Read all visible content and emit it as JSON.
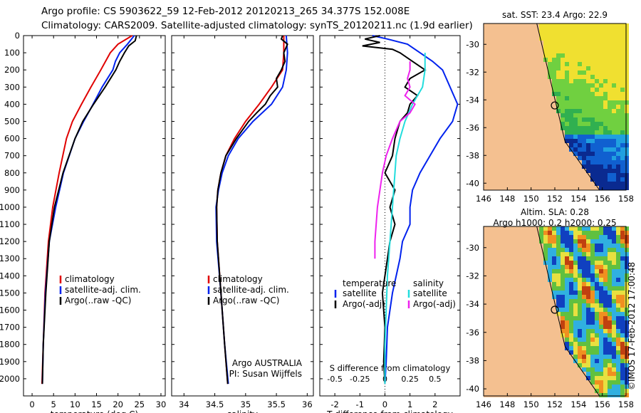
{
  "header": {
    "line1": "Argo profile: CS 5903622_59 12-Feb-2012 20120213_265 34.377S 152.008E",
    "line2": "Climatology: CARS2009. Satellite-adjusted climatology: synTS_20120211.nc (1.9d earlier)"
  },
  "colors": {
    "climatology": "#e00000",
    "satellite": "#0022ee",
    "argo": "#000000",
    "sal_satellite": "#22dddd",
    "sal_argo": "#ee22ee",
    "land": "#f4c090"
  },
  "side_label": "©IMOS 17-Feb-2012 17:00:48",
  "chart_data": [
    {
      "type": "line",
      "id": "temperature",
      "xlabel": "temperature (deg C)",
      "xlim": [
        -2,
        31
      ],
      "xticks": [
        0,
        5,
        10,
        15,
        20,
        25,
        30
      ],
      "ylim": [
        2100,
        0
      ],
      "yticks": [
        0,
        100,
        200,
        300,
        400,
        500,
        600,
        700,
        800,
        900,
        1000,
        1100,
        1200,
        1300,
        1400,
        1500,
        1600,
        1700,
        1800,
        1900,
        2000
      ],
      "series": [
        {
          "name": "climatology",
          "color": "#e00000",
          "y": [
            0,
            50,
            100,
            200,
            300,
            400,
            500,
            600,
            800,
            1000,
            1200,
            1500,
            1800,
            2030
          ],
          "x": [
            23.3,
            20,
            18.2,
            16,
            13.7,
            11.5,
            9.4,
            8,
            6.3,
            4.8,
            3.8,
            3,
            2.6,
            2.3
          ]
        },
        {
          "name": "satellite-adj. clim.",
          "color": "#0022ee",
          "y": [
            0,
            50,
            100,
            150,
            200,
            300,
            400,
            500,
            600,
            800,
            1000,
            1200,
            1500,
            1800,
            2030
          ],
          "x": [
            23.8,
            22.2,
            20.4,
            19.4,
            18.8,
            16.3,
            14.2,
            12,
            10,
            7.3,
            5.5,
            4,
            3.1,
            2.6,
            2.4
          ]
        },
        {
          "name": "Argo(..raw -QC)",
          "color": "#000000",
          "y": [
            0,
            30,
            60,
            100,
            150,
            200,
            300,
            400,
            500,
            600,
            800,
            1000,
            1200,
            1500,
            1800,
            2030
          ],
          "x": [
            24.3,
            24,
            22.5,
            21.5,
            20.4,
            19.5,
            17,
            14.3,
            11.8,
            10,
            7.2,
            5.2,
            4,
            3.2,
            2.6,
            2.4
          ]
        }
      ],
      "legend": [
        "climatology",
        "satellite-adj. clim.",
        "Argo(..raw -QC)"
      ]
    },
    {
      "type": "line",
      "id": "salinity",
      "xlabel": "salinity",
      "xlim": [
        33.8,
        36.1
      ],
      "xticks": [
        34,
        34.5,
        35,
        35.5,
        36
      ],
      "ylim": [
        2100,
        0
      ],
      "series": [
        {
          "name": "climatology",
          "color": "#e00000",
          "y": [
            0,
            100,
            200,
            300,
            400,
            500,
            600,
            700,
            800,
            900,
            1000,
            1200,
            1500,
            1800,
            2030
          ],
          "x": [
            35.62,
            35.62,
            35.6,
            35.42,
            35.22,
            35.0,
            34.82,
            34.68,
            34.6,
            34.55,
            34.53,
            34.54,
            34.6,
            34.66,
            34.71
          ]
        },
        {
          "name": "satellite-adj. clim.",
          "color": "#0022ee",
          "y": [
            0,
            100,
            200,
            300,
            400,
            500,
            600,
            700,
            800,
            900,
            1000,
            1200,
            1500,
            1800,
            2030
          ],
          "x": [
            35.66,
            35.68,
            35.66,
            35.6,
            35.42,
            35.12,
            34.88,
            34.72,
            34.62,
            34.56,
            34.52,
            34.53,
            34.6,
            34.66,
            34.72
          ]
        },
        {
          "name": "Argo(..raw -QC)",
          "color": "#000000",
          "y": [
            0,
            20,
            50,
            100,
            150,
            200,
            250,
            300,
            350,
            400,
            450,
            500,
            600,
            700,
            800,
            900,
            1000,
            1200,
            1500,
            1800,
            2030
          ],
          "x": [
            35.6,
            35.58,
            35.68,
            35.62,
            35.64,
            35.58,
            35.5,
            35.52,
            35.4,
            35.32,
            35.18,
            35.05,
            34.85,
            34.68,
            34.6,
            34.55,
            34.53,
            34.54,
            34.6,
            34.66,
            34.71
          ]
        }
      ],
      "legend": [
        "climatology",
        "satellite-adj. clim.",
        "Argo(..raw -QC)"
      ],
      "note1": "Argo AUSTRALIA",
      "note2": "PI: Susan Wijffels"
    },
    {
      "type": "line",
      "id": "difference",
      "xlabel": "T difference from climatology",
      "xlabel_top": "S difference from climatology",
      "xlim": [
        -2.6,
        3.0
      ],
      "xticks": [
        -2,
        -1,
        0,
        1,
        2
      ],
      "xticks_top": [
        -0.5,
        -0.25,
        0,
        0.25,
        0.5
      ],
      "ylim": [
        2100,
        0
      ],
      "series": [
        {
          "name": "satellite (temperature)",
          "color": "#0022ee",
          "y": [
            0,
            20,
            50,
            100,
            150,
            200,
            300,
            400,
            500,
            600,
            700,
            800,
            900,
            1000,
            1100,
            1200,
            1300,
            1500,
            1700,
            1900,
            2030
          ],
          "x": [
            -0.5,
            0.1,
            0.9,
            1.4,
            1.9,
            2.3,
            2.6,
            2.9,
            2.7,
            2.2,
            1.8,
            1.4,
            1.1,
            1.0,
            1.0,
            0.7,
            0.6,
            0.3,
            0.1,
            0.05,
            0.0
          ]
        },
        {
          "name": "Argo(-adj) (temperature)",
          "color": "#000000",
          "y": [
            0,
            20,
            40,
            60,
            80,
            100,
            150,
            200,
            250,
            300,
            350,
            400,
            450,
            500,
            600,
            700,
            800,
            900,
            1000,
            1100,
            1200,
            1300,
            1400,
            1500,
            1700,
            1900,
            2030
          ],
          "x": [
            -0.2,
            -0.8,
            -0.2,
            -0.9,
            0.3,
            0.6,
            1.1,
            1.6,
            1.0,
            0.8,
            1.3,
            1.0,
            0.9,
            0.6,
            0.4,
            0.3,
            0.0,
            0.4,
            0.2,
            0.4,
            0.2,
            0.1,
            0.0,
            -0.1,
            0.0,
            -0.05,
            0.0
          ]
        },
        {
          "name": "satellite (salinity)",
          "color": "#22dddd",
          "y": [
            100,
            200,
            300,
            400,
            500,
            600,
            700,
            800,
            1000,
            1200,
            1400,
            1600,
            1800,
            2030
          ],
          "x": [
            1.6,
            1.6,
            1.5,
            1.1,
            0.8,
            0.6,
            0.45,
            0.4,
            0.3,
            0.2,
            0.1,
            0.05,
            0.0,
            0.0
          ]
        },
        {
          "name": "Argo(-adj) (salinity)",
          "color": "#ee22ee",
          "y": [
            150,
            200,
            250,
            300,
            350,
            400,
            450,
            500,
            600,
            700,
            800,
            900,
            1000,
            1100,
            1200,
            1300
          ],
          "x": [
            1.0,
            1.0,
            0.9,
            1.0,
            0.8,
            1.2,
            1.0,
            0.6,
            0.3,
            0.05,
            -0.1,
            -0.2,
            -0.3,
            -0.35,
            -0.4,
            -0.4
          ]
        }
      ],
      "legend_temperature": {
        "title": "temperature",
        "satellite": "satellite",
        "argo": "Argo(-adj)"
      },
      "legend_salinity": {
        "title": "salinity",
        "satellite": "satellite",
        "argo": "Argo(-adj)"
      }
    }
  ],
  "maps": [
    {
      "title": "sat. SST: 23.4  Argo: 22.9",
      "lon_ticks": [
        146,
        148,
        150,
        152,
        154,
        156,
        158
      ],
      "lat_ticks": [
        -30,
        -32,
        -34,
        -36,
        -38,
        -40
      ],
      "lon_range": [
        146,
        158
      ],
      "lat_range": [
        -40.5,
        -28.5
      ],
      "marker": {
        "lon": 152.0,
        "lat": -34.4
      }
    },
    {
      "title1": "Altim. SLA: 0.28",
      "title2": "Argo h1000: 0.2  h2000: 0.25",
      "lon_ticks": [
        146,
        148,
        150,
        152,
        154,
        156,
        158
      ],
      "lat_ticks": [
        -30,
        -32,
        -34,
        -36,
        -38,
        -40
      ],
      "lon_range": [
        146,
        158
      ],
      "lat_range": [
        -40.5,
        -28.5
      ],
      "marker": {
        "lon": 152.0,
        "lat": -34.4
      }
    }
  ]
}
